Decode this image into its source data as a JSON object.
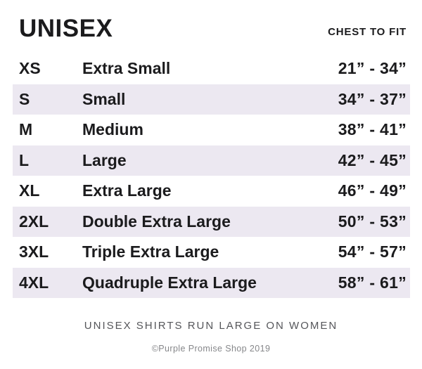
{
  "header": {
    "title": "UNISEX",
    "chest_label": "CHEST TO FIT"
  },
  "table": {
    "rows": [
      {
        "code": "XS",
        "name": "Extra Small",
        "range": "21” - 34”",
        "shaded": false
      },
      {
        "code": "S",
        "name": "Small",
        "range": "34” - 37”",
        "shaded": true
      },
      {
        "code": "M",
        "name": "Medium",
        "range": "38” - 41”",
        "shaded": false
      },
      {
        "code": "L",
        "name": "Large",
        "range": "42” - 45”",
        "shaded": true
      },
      {
        "code": "XL",
        "name": "Extra Large",
        "range": "46” - 49”",
        "shaded": false
      },
      {
        "code": "2XL",
        "name": "Double Extra Large",
        "range": "50” - 53”",
        "shaded": true
      },
      {
        "code": "3XL",
        "name": "Triple Extra Large",
        "range": "54” - 57”",
        "shaded": false
      },
      {
        "code": "4XL",
        "name": "Quadruple Extra Large",
        "range": "58” - 61”",
        "shaded": true
      }
    ]
  },
  "footer": {
    "note": "UNISEX SHIRTS RUN LARGE ON WOMEN",
    "copyright": "©Purple Promise Shop 2019"
  },
  "colors": {
    "row_shade": "#ece8f1",
    "text": "#1b1b1d",
    "note_gray": "#55565a",
    "copyright_gray": "#86878a"
  }
}
